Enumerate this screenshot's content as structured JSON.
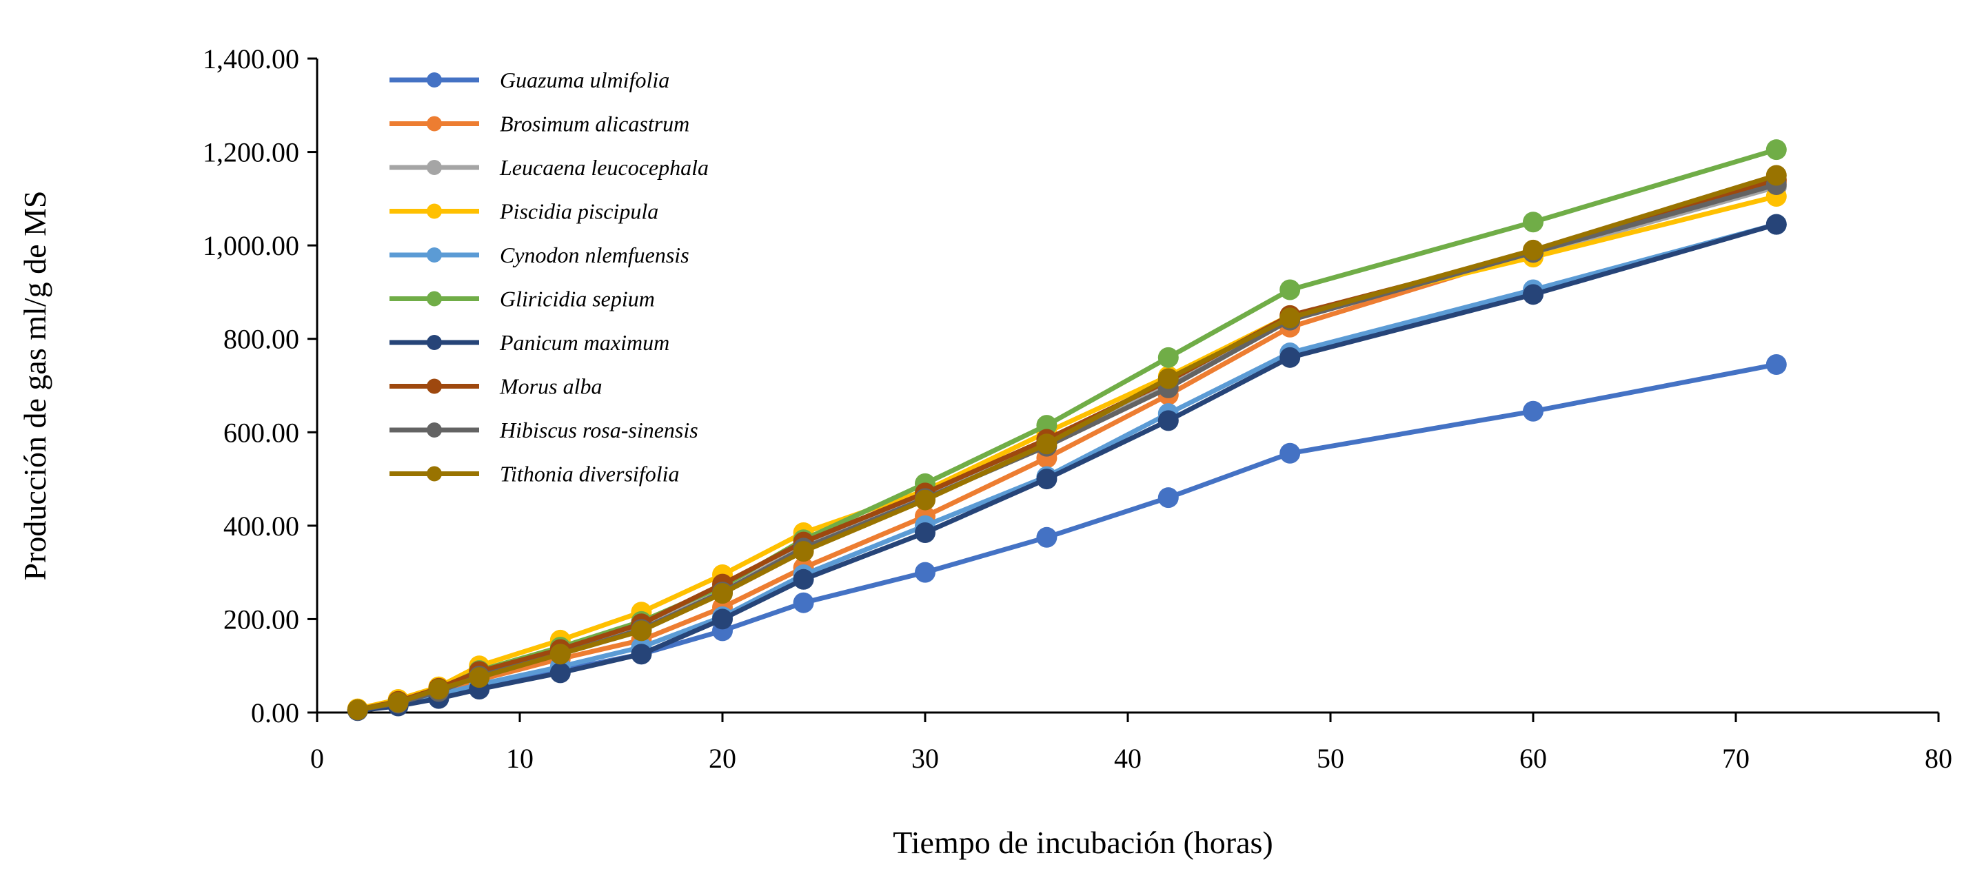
{
  "chart_data": {
    "type": "line",
    "title": "",
    "xlabel": "Tiempo de incubación (horas)",
    "ylabel": "Producción de gas ml/g de MS",
    "xlim": [
      0,
      80
    ],
    "ylim": [
      0,
      1400
    ],
    "x_ticks": [
      0,
      10,
      20,
      30,
      40,
      50,
      60,
      70,
      80
    ],
    "y_ticks": [
      0,
      200,
      400,
      600,
      800,
      1000,
      1200,
      1400
    ],
    "x_tick_labels": [
      "0",
      "10",
      "20",
      "30",
      "40",
      "50",
      "60",
      "70",
      "80"
    ],
    "y_tick_labels": [
      "0.00",
      "200.00",
      "400.00",
      "600.00",
      "800.00",
      "1,000.00",
      "1,200.00",
      "1,400.00"
    ],
    "grid": false,
    "legend_position": "top-left",
    "x": [
      2,
      4,
      6,
      8,
      12,
      16,
      20,
      24,
      30,
      36,
      42,
      48,
      60,
      72
    ],
    "series": [
      {
        "name": "Guazuma ulmifolia",
        "color": "#4472C4",
        "values": [
          5,
          15,
          35,
          55,
          90,
          125,
          175,
          235,
          300,
          375,
          460,
          555,
          645,
          745
        ]
      },
      {
        "name": "Brosimum alicastrum",
        "color": "#ED7D31",
        "values": [
          5,
          18,
          42,
          70,
          115,
          155,
          225,
          310,
          420,
          545,
          680,
          825,
          985,
          1135
        ]
      },
      {
        "name": "Leucaena leucocephala",
        "color": "#A5A5A5",
        "values": [
          6,
          22,
          48,
          85,
          130,
          185,
          260,
          355,
          465,
          580,
          705,
          845,
          980,
          1125
        ]
      },
      {
        "name": "Piscidia piscipula",
        "color": "#FFC000",
        "values": [
          8,
          28,
          55,
          100,
          155,
          215,
          295,
          385,
          475,
          600,
          720,
          850,
          975,
          1105
        ]
      },
      {
        "name": "Cynodon nlemfuensis",
        "color": "#5B9BD5",
        "values": [
          5,
          16,
          38,
          60,
          98,
          140,
          205,
          295,
          400,
          505,
          640,
          770,
          905,
          1045
        ]
      },
      {
        "name": "Gliricidia sepium",
        "color": "#70AD47",
        "values": [
          6,
          24,
          50,
          90,
          140,
          195,
          270,
          370,
          490,
          615,
          760,
          905,
          1050,
          1205
        ]
      },
      {
        "name": "Panicum maximum",
        "color": "#264478",
        "values": [
          4,
          14,
          30,
          50,
          85,
          125,
          200,
          285,
          385,
          500,
          625,
          760,
          895,
          1045
        ]
      },
      {
        "name": "Morus alba",
        "color": "#9E480E",
        "values": [
          6,
          24,
          52,
          88,
          135,
          190,
          275,
          365,
          470,
          585,
          710,
          850,
          985,
          1140
        ]
      },
      {
        "name": "Hibiscus rosa-sinensis",
        "color": "#636363",
        "values": [
          5,
          20,
          45,
          78,
          125,
          178,
          258,
          352,
          458,
          570,
          695,
          840,
          985,
          1130
        ]
      },
      {
        "name": "Tithonia diversifolia",
        "color": "#997300",
        "values": [
          6,
          22,
          50,
          75,
          125,
          175,
          255,
          345,
          455,
          575,
          715,
          845,
          990,
          1150
        ]
      }
    ]
  }
}
